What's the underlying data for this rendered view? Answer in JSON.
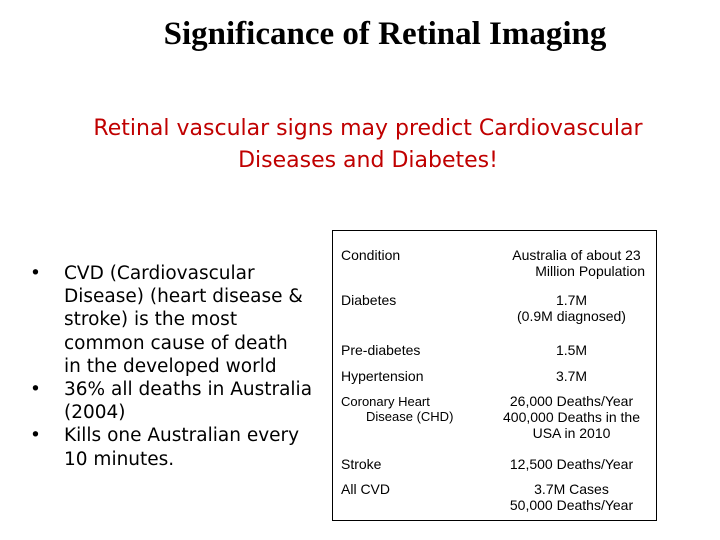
{
  "slide": {
    "title": "Significance of Retinal Imaging",
    "subtitle_line1": "Retinal vascular signs may predict Cardiovascular",
    "subtitle_line2": "Diseases and Diabetes!",
    "colors": {
      "subtitle": "#c00000",
      "text": "#000000"
    }
  },
  "bullets": [
    {
      "marker": "•",
      "lines": [
        "CVD (Cardiovascular",
        "Disease) (heart disease &",
        "stroke) is the most",
        "common cause of death",
        "in the developed world"
      ]
    },
    {
      "marker": "•",
      "lines": [
        "36% all deaths in Australia",
        "(2004)"
      ]
    },
    {
      "marker": "•",
      "lines": [
        "Kills one Australian every",
        "10 minutes."
      ]
    }
  ],
  "table": {
    "header": {
      "condition": "Condition",
      "population_line1": "Australia of about  23",
      "population_line2": "Million Population"
    },
    "rows": [
      {
        "condition_lines": [
          "Diabetes"
        ],
        "value_lines": [
          "1.7M",
          "(0.9M diagnosed)"
        ]
      },
      {
        "condition_lines": [
          "Pre-diabetes"
        ],
        "value_lines": [
          "1.5M"
        ]
      },
      {
        "condition_lines": [
          "Hypertension"
        ],
        "value_lines": [
          "3.7M"
        ]
      },
      {
        "condition_lines": [
          "Coronary Heart",
          "Disease (CHD)"
        ],
        "value_lines": [
          "26,000 Deaths/Year",
          "400,000 Deaths in the",
          "USA in 2010"
        ]
      },
      {
        "condition_lines": [
          "Stroke"
        ],
        "value_lines": [
          "12,500 Deaths/Year"
        ]
      },
      {
        "condition_lines": [
          "All CVD"
        ],
        "value_lines": [
          "3.7M Cases",
          "50,000 Deaths/Year"
        ]
      }
    ]
  }
}
